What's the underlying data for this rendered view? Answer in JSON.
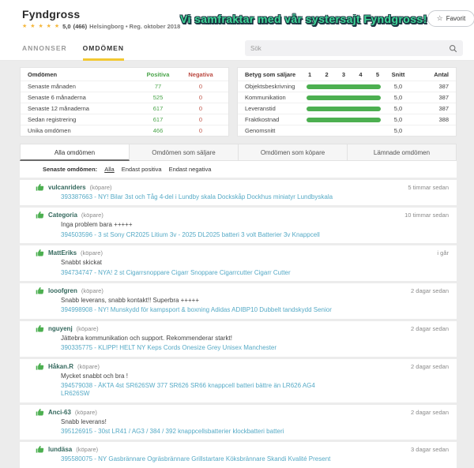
{
  "header": {
    "title": "Fyndgross",
    "stars": "★ ★ ★ ★ ★",
    "rating": "5,0",
    "rating_count": "(466)",
    "meta": "Helsingborg • Reg. oktober 2018",
    "banner": "Vi samfraktar med vår systersajt Fyndgross!",
    "favorite_label": "Favorit",
    "favorite_star": "☆"
  },
  "nav": {
    "tabs": [
      {
        "label": "ANNONSER",
        "active": false
      },
      {
        "label": "OMDÖMEN",
        "active": true
      }
    ],
    "search_placeholder": "Sök"
  },
  "stats_table": {
    "headers": {
      "label": "Omdömen",
      "positive": "Positiva",
      "negative": "Negativa"
    },
    "rows": [
      {
        "label": "Senaste månaden",
        "positive": "77",
        "negative": "0"
      },
      {
        "label": "Senaste 6 månaderna",
        "positive": "525",
        "negative": "0"
      },
      {
        "label": "Senaste 12 månaderna",
        "positive": "617",
        "negative": "0"
      },
      {
        "label": "Sedan registrering",
        "positive": "617",
        "negative": "0"
      },
      {
        "label": "Unika omdömen",
        "positive": "466",
        "negative": "0"
      }
    ]
  },
  "rating_table": {
    "title": "Betyg som säljare",
    "scale": [
      "1",
      "2",
      "3",
      "4",
      "5"
    ],
    "snitt_header": "Snitt",
    "antal_header": "Antal",
    "rows": [
      {
        "label": "Objektsbeskrivning",
        "bar_pct": 100,
        "snitt": "5,0",
        "antal": "387"
      },
      {
        "label": "Kommunikation",
        "bar_pct": 100,
        "snitt": "5,0",
        "antal": "387"
      },
      {
        "label": "Leveranstid",
        "bar_pct": 100,
        "snitt": "5,0",
        "antal": "387"
      },
      {
        "label": "Fraktkostnad",
        "bar_pct": 100,
        "snitt": "5,0",
        "antal": "388"
      }
    ],
    "footer": {
      "label": "Genomsnitt",
      "snitt": "5,0"
    }
  },
  "filter_tabs": [
    {
      "label": "Alla omdömen",
      "active": true
    },
    {
      "label": "Omdömen som säljare",
      "active": false
    },
    {
      "label": "Omdömen som köpare",
      "active": false
    },
    {
      "label": "Lämnade omdömen",
      "active": false
    }
  ],
  "filter_bar": {
    "label": "Senaste omdömen:",
    "options": [
      "Alla",
      "Endast positiva",
      "Endast negativa"
    ]
  },
  "reviews": [
    {
      "user": "vulcanriders",
      "role": "(köpare)",
      "comment": "",
      "item": "393387663 - NY! Bilar 3st och Tåg 4-del i Lundby skala Dockskåp Dockhus miniatyr Lundbyskala",
      "time": "5 timmar sedan"
    },
    {
      "user": "Categoria",
      "role": "(köpare)",
      "comment": "Inga problem bara +++++",
      "item": "394503596 - 3 st Sony CR2025 Litium 3v - 2025 DL2025 batteri 3 volt Batterier 3v Knappcell",
      "time": "10 timmar sedan"
    },
    {
      "user": "MattEriks",
      "role": "(köpare)",
      "comment": "Snabbt skickat",
      "item": "394734747 - NYA! 2 st Cigarrsnoppare Cigarr Snoppare Cigarrcutter Cigarr Cutter",
      "time": "i går"
    },
    {
      "user": "looofgren",
      "role": "(köpare)",
      "comment": "Snabb leverans, snabb kontakt!! Superbra +++++",
      "item": "394998908 - NY! Munskydd för kampsport & boxning Adidas ADIBP10 Dubbelt tandskydd Senior",
      "time": "2 dagar sedan"
    },
    {
      "user": "nguyenj",
      "role": "(köpare)",
      "comment": "Jättebra kommunikation och support. Rekommenderar starkt!",
      "item": "390335775 - KLIPP! HELT NY Keps Cords Onesize Grey Unisex Manchester",
      "time": "2 dagar sedan"
    },
    {
      "user": "Håkan.R",
      "role": "(köpare)",
      "comment": "Mycket snabbt och bra !",
      "item": "394579038 - ÄKTA 4st SR626SW 377 SR626 SR66 knappcell batteri bättre än LR626 AG4 LR626SW",
      "time": "2 dagar sedan"
    },
    {
      "user": "Anci-63",
      "role": "(köpare)",
      "comment": "Snabb leverans!",
      "item": "395126915 - 30st LR41 / AG3 / 384 / 392 knappcellsbatterier klockbatteri batteri",
      "time": "2 dagar sedan"
    },
    {
      "user": "lundäsa",
      "role": "(köpare)",
      "comment": "",
      "item": "395580075 - NY Gasbrännare Ogräsbrännare Grillstartare Köksbrännare Skandi Kvalité Present",
      "time": "3 dagar sedan"
    }
  ],
  "colors": {
    "positive_green": "#4aa44a",
    "bar_green": "#4caf50",
    "negative_red": "#c0564a",
    "link_blue": "#56aac6",
    "tab_underline_yellow": "#f2c832",
    "star_yellow": "#f5b73b",
    "banner_fill": "#3fd597",
    "banner_outline": "#1b3642"
  }
}
